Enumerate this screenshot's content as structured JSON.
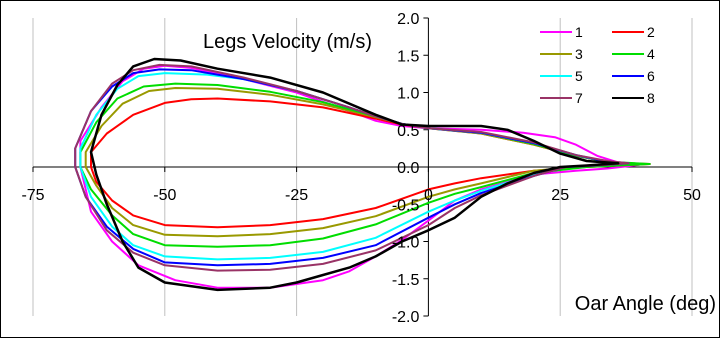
{
  "chart_data": {
    "type": "line",
    "title": "",
    "xlabel": "Oar Angle (deg)",
    "ylabel": "Legs Velocity (m/s)",
    "xlim": [
      -75,
      50
    ],
    "ylim": [
      -2.0,
      2.0
    ],
    "x_ticks": [
      "-75",
      "-50",
      "-25",
      "0",
      "25",
      "50"
    ],
    "y_ticks": [
      "2.0",
      "1.5",
      "1.0",
      "0.5",
      "0.0",
      "-0.5",
      "-1.0",
      "-1.5",
      "-2.0"
    ],
    "grid": "vertical",
    "legend_position": "top-right",
    "series": [
      {
        "name": "1",
        "color": "#ff00ff",
        "drive": [
          [
            -66,
            0.35
          ],
          [
            -62,
            0.8
          ],
          [
            -58,
            1.15
          ],
          [
            -54,
            1.32
          ],
          [
            -50,
            1.36
          ],
          [
            -45,
            1.33
          ],
          [
            -35,
            1.18
          ],
          [
            -25,
            1.0
          ],
          [
            -15,
            0.75
          ],
          [
            -10,
            0.62
          ],
          [
            -5,
            0.55
          ],
          [
            0,
            0.52
          ],
          [
            10,
            0.5
          ],
          [
            18,
            0.46
          ],
          [
            24,
            0.4
          ],
          [
            28,
            0.3
          ],
          [
            32,
            0.15
          ],
          [
            36,
            0.06
          ],
          [
            40,
            0.03
          ]
        ],
        "recovery": [
          [
            40,
            0.03
          ],
          [
            34,
            -0.02
          ],
          [
            28,
            -0.05
          ],
          [
            20,
            -0.1
          ],
          [
            10,
            -0.3
          ],
          [
            5,
            -0.45
          ],
          [
            0,
            -0.72
          ],
          [
            -5,
            -0.98
          ],
          [
            -10,
            -1.2
          ],
          [
            -15,
            -1.4
          ],
          [
            -20,
            -1.52
          ],
          [
            -30,
            -1.62
          ],
          [
            -40,
            -1.62
          ],
          [
            -48,
            -1.52
          ],
          [
            -55,
            -1.32
          ],
          [
            -60,
            -1.0
          ],
          [
            -64,
            -0.6
          ],
          [
            -66,
            0.0
          ],
          [
            -66,
            0.35
          ]
        ]
      },
      {
        "name": "2",
        "color": "#ff0000",
        "drive": [
          [
            -64,
            0.2
          ],
          [
            -61,
            0.45
          ],
          [
            -56,
            0.7
          ],
          [
            -50,
            0.86
          ],
          [
            -45,
            0.91
          ],
          [
            -40,
            0.92
          ],
          [
            -30,
            0.88
          ],
          [
            -20,
            0.8
          ],
          [
            -10,
            0.65
          ],
          [
            -5,
            0.57
          ],
          [
            0,
            0.52
          ],
          [
            10,
            0.45
          ],
          [
            20,
            0.3
          ],
          [
            28,
            0.15
          ],
          [
            34,
            0.07
          ],
          [
            38,
            0.05
          ],
          [
            42,
            0.04
          ]
        ],
        "recovery": [
          [
            42,
            0.04
          ],
          [
            36,
            0.02
          ],
          [
            30,
            0.0
          ],
          [
            20,
            -0.05
          ],
          [
            10,
            -0.15
          ],
          [
            5,
            -0.22
          ],
          [
            0,
            -0.3
          ],
          [
            -10,
            -0.55
          ],
          [
            -20,
            -0.7
          ],
          [
            -30,
            -0.78
          ],
          [
            -40,
            -0.81
          ],
          [
            -50,
            -0.78
          ],
          [
            -56,
            -0.65
          ],
          [
            -60,
            -0.45
          ],
          [
            -63,
            -0.2
          ],
          [
            -64,
            0.0
          ],
          [
            -64,
            0.2
          ]
        ]
      },
      {
        "name": "3",
        "color": "#999900",
        "drive": [
          [
            -65,
            0.2
          ],
          [
            -62,
            0.55
          ],
          [
            -58,
            0.85
          ],
          [
            -53,
            1.02
          ],
          [
            -48,
            1.06
          ],
          [
            -40,
            1.05
          ],
          [
            -30,
            0.97
          ],
          [
            -20,
            0.84
          ],
          [
            -10,
            0.67
          ],
          [
            -5,
            0.58
          ],
          [
            0,
            0.52
          ],
          [
            10,
            0.45
          ],
          [
            20,
            0.3
          ],
          [
            28,
            0.15
          ],
          [
            34,
            0.07
          ],
          [
            40,
            0.04
          ]
        ],
        "recovery": [
          [
            40,
            0.04
          ],
          [
            34,
            0.02
          ],
          [
            28,
            0.0
          ],
          [
            20,
            -0.05
          ],
          [
            10,
            -0.22
          ],
          [
            5,
            -0.3
          ],
          [
            0,
            -0.4
          ],
          [
            -10,
            -0.66
          ],
          [
            -20,
            -0.82
          ],
          [
            -30,
            -0.9
          ],
          [
            -40,
            -0.93
          ],
          [
            -50,
            -0.91
          ],
          [
            -56,
            -0.78
          ],
          [
            -60,
            -0.55
          ],
          [
            -63,
            -0.25
          ],
          [
            -65,
            0.0
          ],
          [
            -65,
            0.2
          ]
        ]
      },
      {
        "name": "4",
        "color": "#00dd00",
        "drive": [
          [
            -66,
            0.2
          ],
          [
            -63,
            0.6
          ],
          [
            -59,
            0.92
          ],
          [
            -54,
            1.08
          ],
          [
            -48,
            1.12
          ],
          [
            -40,
            1.1
          ],
          [
            -30,
            1.01
          ],
          [
            -20,
            0.87
          ],
          [
            -10,
            0.68
          ],
          [
            -5,
            0.58
          ],
          [
            0,
            0.52
          ],
          [
            10,
            0.46
          ],
          [
            20,
            0.31
          ],
          [
            28,
            0.15
          ],
          [
            34,
            0.07
          ],
          [
            42,
            0.04
          ]
        ],
        "recovery": [
          [
            42,
            0.04
          ],
          [
            36,
            0.02
          ],
          [
            30,
            0.0
          ],
          [
            20,
            -0.08
          ],
          [
            10,
            -0.27
          ],
          [
            5,
            -0.36
          ],
          [
            0,
            -0.48
          ],
          [
            -10,
            -0.77
          ],
          [
            -20,
            -0.96
          ],
          [
            -30,
            -1.05
          ],
          [
            -40,
            -1.07
          ],
          [
            -50,
            -1.05
          ],
          [
            -56,
            -0.9
          ],
          [
            -60,
            -0.65
          ],
          [
            -64,
            -0.3
          ],
          [
            -66,
            0.0
          ],
          [
            -66,
            0.2
          ]
        ]
      },
      {
        "name": "5",
        "color": "#00ffff",
        "drive": [
          [
            -66,
            0.25
          ],
          [
            -63,
            0.7
          ],
          [
            -59,
            1.05
          ],
          [
            -55,
            1.22
          ],
          [
            -50,
            1.26
          ],
          [
            -42,
            1.24
          ],
          [
            -35,
            1.18
          ],
          [
            -25,
            1.02
          ],
          [
            -15,
            0.8
          ],
          [
            -10,
            0.68
          ],
          [
            -5,
            0.58
          ],
          [
            0,
            0.52
          ],
          [
            10,
            0.46
          ],
          [
            20,
            0.32
          ],
          [
            28,
            0.16
          ],
          [
            34,
            0.07
          ],
          [
            38,
            0.05
          ]
        ],
        "recovery": [
          [
            38,
            0.05
          ],
          [
            32,
            0.02
          ],
          [
            26,
            0.0
          ],
          [
            20,
            -0.1
          ],
          [
            10,
            -0.32
          ],
          [
            5,
            -0.45
          ],
          [
            0,
            -0.6
          ],
          [
            -10,
            -0.95
          ],
          [
            -20,
            -1.14
          ],
          [
            -30,
            -1.22
          ],
          [
            -40,
            -1.24
          ],
          [
            -50,
            -1.2
          ],
          [
            -56,
            -1.05
          ],
          [
            -60,
            -0.8
          ],
          [
            -64,
            -0.4
          ],
          [
            -66,
            0.0
          ],
          [
            -66,
            0.25
          ]
        ]
      },
      {
        "name": "6",
        "color": "#0000ff",
        "drive": [
          [
            -67,
            0.25
          ],
          [
            -64,
            0.75
          ],
          [
            -60,
            1.08
          ],
          [
            -56,
            1.26
          ],
          [
            -51,
            1.31
          ],
          [
            -45,
            1.3
          ],
          [
            -35,
            1.18
          ],
          [
            -25,
            1.02
          ],
          [
            -15,
            0.8
          ],
          [
            -10,
            0.68
          ],
          [
            -5,
            0.58
          ],
          [
            0,
            0.52
          ],
          [
            10,
            0.46
          ],
          [
            20,
            0.32
          ],
          [
            28,
            0.16
          ],
          [
            34,
            0.07
          ],
          [
            38,
            0.05
          ]
        ],
        "recovery": [
          [
            38,
            0.05
          ],
          [
            32,
            0.02
          ],
          [
            26,
            0.0
          ],
          [
            20,
            -0.12
          ],
          [
            10,
            -0.35
          ],
          [
            5,
            -0.5
          ],
          [
            0,
            -0.68
          ],
          [
            -10,
            -1.05
          ],
          [
            -20,
            -1.22
          ],
          [
            -30,
            -1.3
          ],
          [
            -40,
            -1.32
          ],
          [
            -50,
            -1.28
          ],
          [
            -56,
            -1.1
          ],
          [
            -61,
            -0.8
          ],
          [
            -65,
            -0.4
          ],
          [
            -67,
            0.0
          ],
          [
            -67,
            0.25
          ]
        ]
      },
      {
        "name": "7",
        "color": "#993366",
        "drive": [
          [
            -67,
            0.25
          ],
          [
            -64,
            0.75
          ],
          [
            -60,
            1.12
          ],
          [
            -56,
            1.3
          ],
          [
            -51,
            1.37
          ],
          [
            -45,
            1.35
          ],
          [
            -35,
            1.2
          ],
          [
            -25,
            1.02
          ],
          [
            -15,
            0.8
          ],
          [
            -10,
            0.68
          ],
          [
            -5,
            0.58
          ],
          [
            0,
            0.52
          ],
          [
            10,
            0.47
          ],
          [
            20,
            0.33
          ],
          [
            28,
            0.16
          ],
          [
            34,
            0.08
          ],
          [
            38,
            0.05
          ]
        ],
        "recovery": [
          [
            38,
            0.05
          ],
          [
            32,
            0.02
          ],
          [
            26,
            0.0
          ],
          [
            20,
            -0.12
          ],
          [
            10,
            -0.38
          ],
          [
            5,
            -0.55
          ],
          [
            0,
            -0.78
          ],
          [
            -10,
            -1.12
          ],
          [
            -20,
            -1.3
          ],
          [
            -30,
            -1.38
          ],
          [
            -40,
            -1.39
          ],
          [
            -50,
            -1.32
          ],
          [
            -56,
            -1.15
          ],
          [
            -61,
            -0.85
          ],
          [
            -65,
            -0.4
          ],
          [
            -67,
            0.0
          ],
          [
            -67,
            0.25
          ]
        ]
      },
      {
        "name": "8",
        "color": "#000000",
        "drive": [
          [
            -64,
            0.2
          ],
          [
            -62,
            0.7
          ],
          [
            -59,
            1.1
          ],
          [
            -56,
            1.35
          ],
          [
            -52,
            1.45
          ],
          [
            -47,
            1.43
          ],
          [
            -40,
            1.32
          ],
          [
            -30,
            1.2
          ],
          [
            -20,
            1.0
          ],
          [
            -10,
            0.7
          ],
          [
            -5,
            0.57
          ],
          [
            0,
            0.55
          ],
          [
            10,
            0.55
          ],
          [
            15,
            0.5
          ],
          [
            20,
            0.35
          ],
          [
            25,
            0.18
          ],
          [
            30,
            0.08
          ],
          [
            34,
            0.06
          ],
          [
            36,
            0.05
          ]
        ],
        "recovery": [
          [
            36,
            0.05
          ],
          [
            30,
            0.02
          ],
          [
            25,
            0.0
          ],
          [
            20,
            -0.08
          ],
          [
            15,
            -0.22
          ],
          [
            10,
            -0.4
          ],
          [
            5,
            -0.68
          ],
          [
            0,
            -0.85
          ],
          [
            -5,
            -1.0
          ],
          [
            -10,
            -1.2
          ],
          [
            -15,
            -1.35
          ],
          [
            -20,
            -1.45
          ],
          [
            -25,
            -1.55
          ],
          [
            -30,
            -1.62
          ],
          [
            -40,
            -1.65
          ],
          [
            -50,
            -1.55
          ],
          [
            -55,
            -1.35
          ],
          [
            -58,
            -1.0
          ],
          [
            -61,
            -0.5
          ],
          [
            -63,
            -0.1
          ],
          [
            -64,
            0.2
          ]
        ]
      }
    ]
  }
}
